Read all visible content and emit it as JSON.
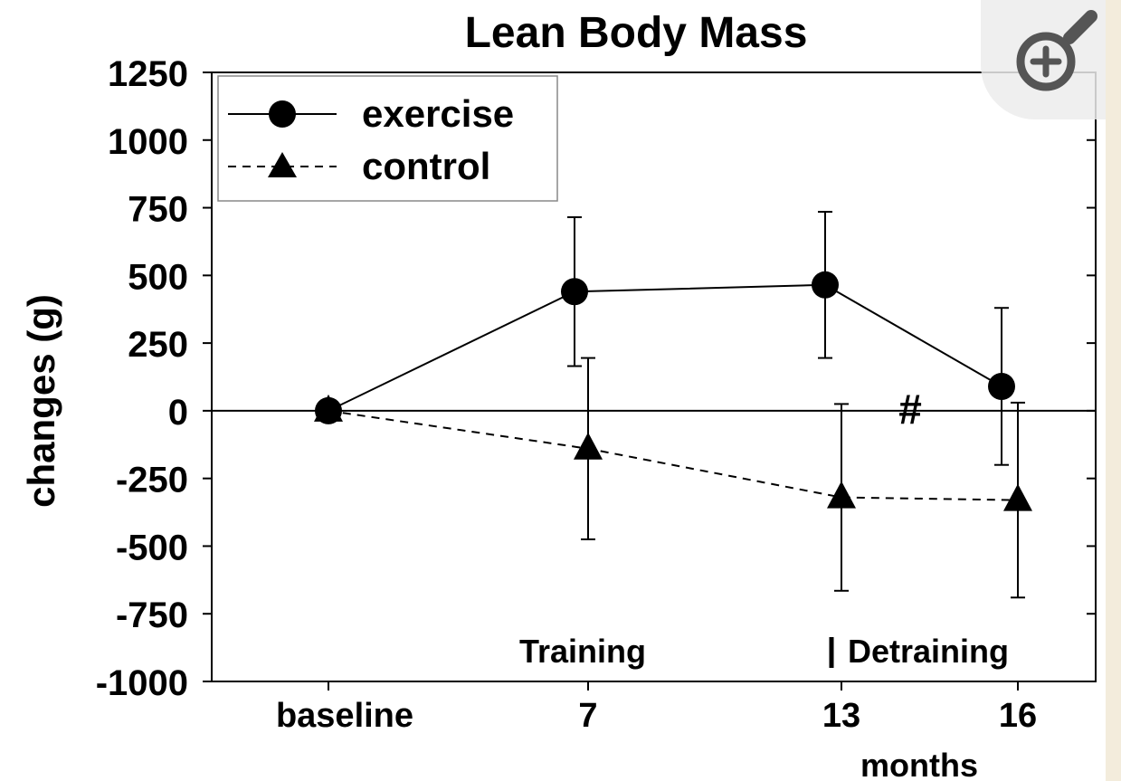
{
  "chart_data": {
    "type": "line",
    "title": "Lean Body Mass",
    "ylabel": "changes (g)",
    "xlabel": "months",
    "categories": [
      "baseline",
      "7",
      "13",
      "16"
    ],
    "yticks": [
      "1250",
      "1000",
      "750",
      "500",
      "250",
      "0",
      "-250",
      "-500",
      "-750",
      "-1000"
    ],
    "ylim": [
      -1000,
      1250
    ],
    "grid": false,
    "legend_position": "top-left",
    "series": [
      {
        "name": "exercise",
        "marker": "circle",
        "line_style": "solid",
        "values": [
          0,
          440,
          465,
          90
        ],
        "error": [
          null,
          275,
          270,
          290
        ]
      },
      {
        "name": "control",
        "marker": "triangle",
        "line_style": "dashed",
        "values": [
          0,
          -140,
          -320,
          -330
        ],
        "error": [
          null,
          335,
          345,
          360
        ]
      }
    ],
    "annotations": {
      "training": "Training",
      "detraining": "Detraining",
      "significance": "#"
    }
  },
  "ui": {
    "zoom_icon": "zoom-in-icon"
  }
}
